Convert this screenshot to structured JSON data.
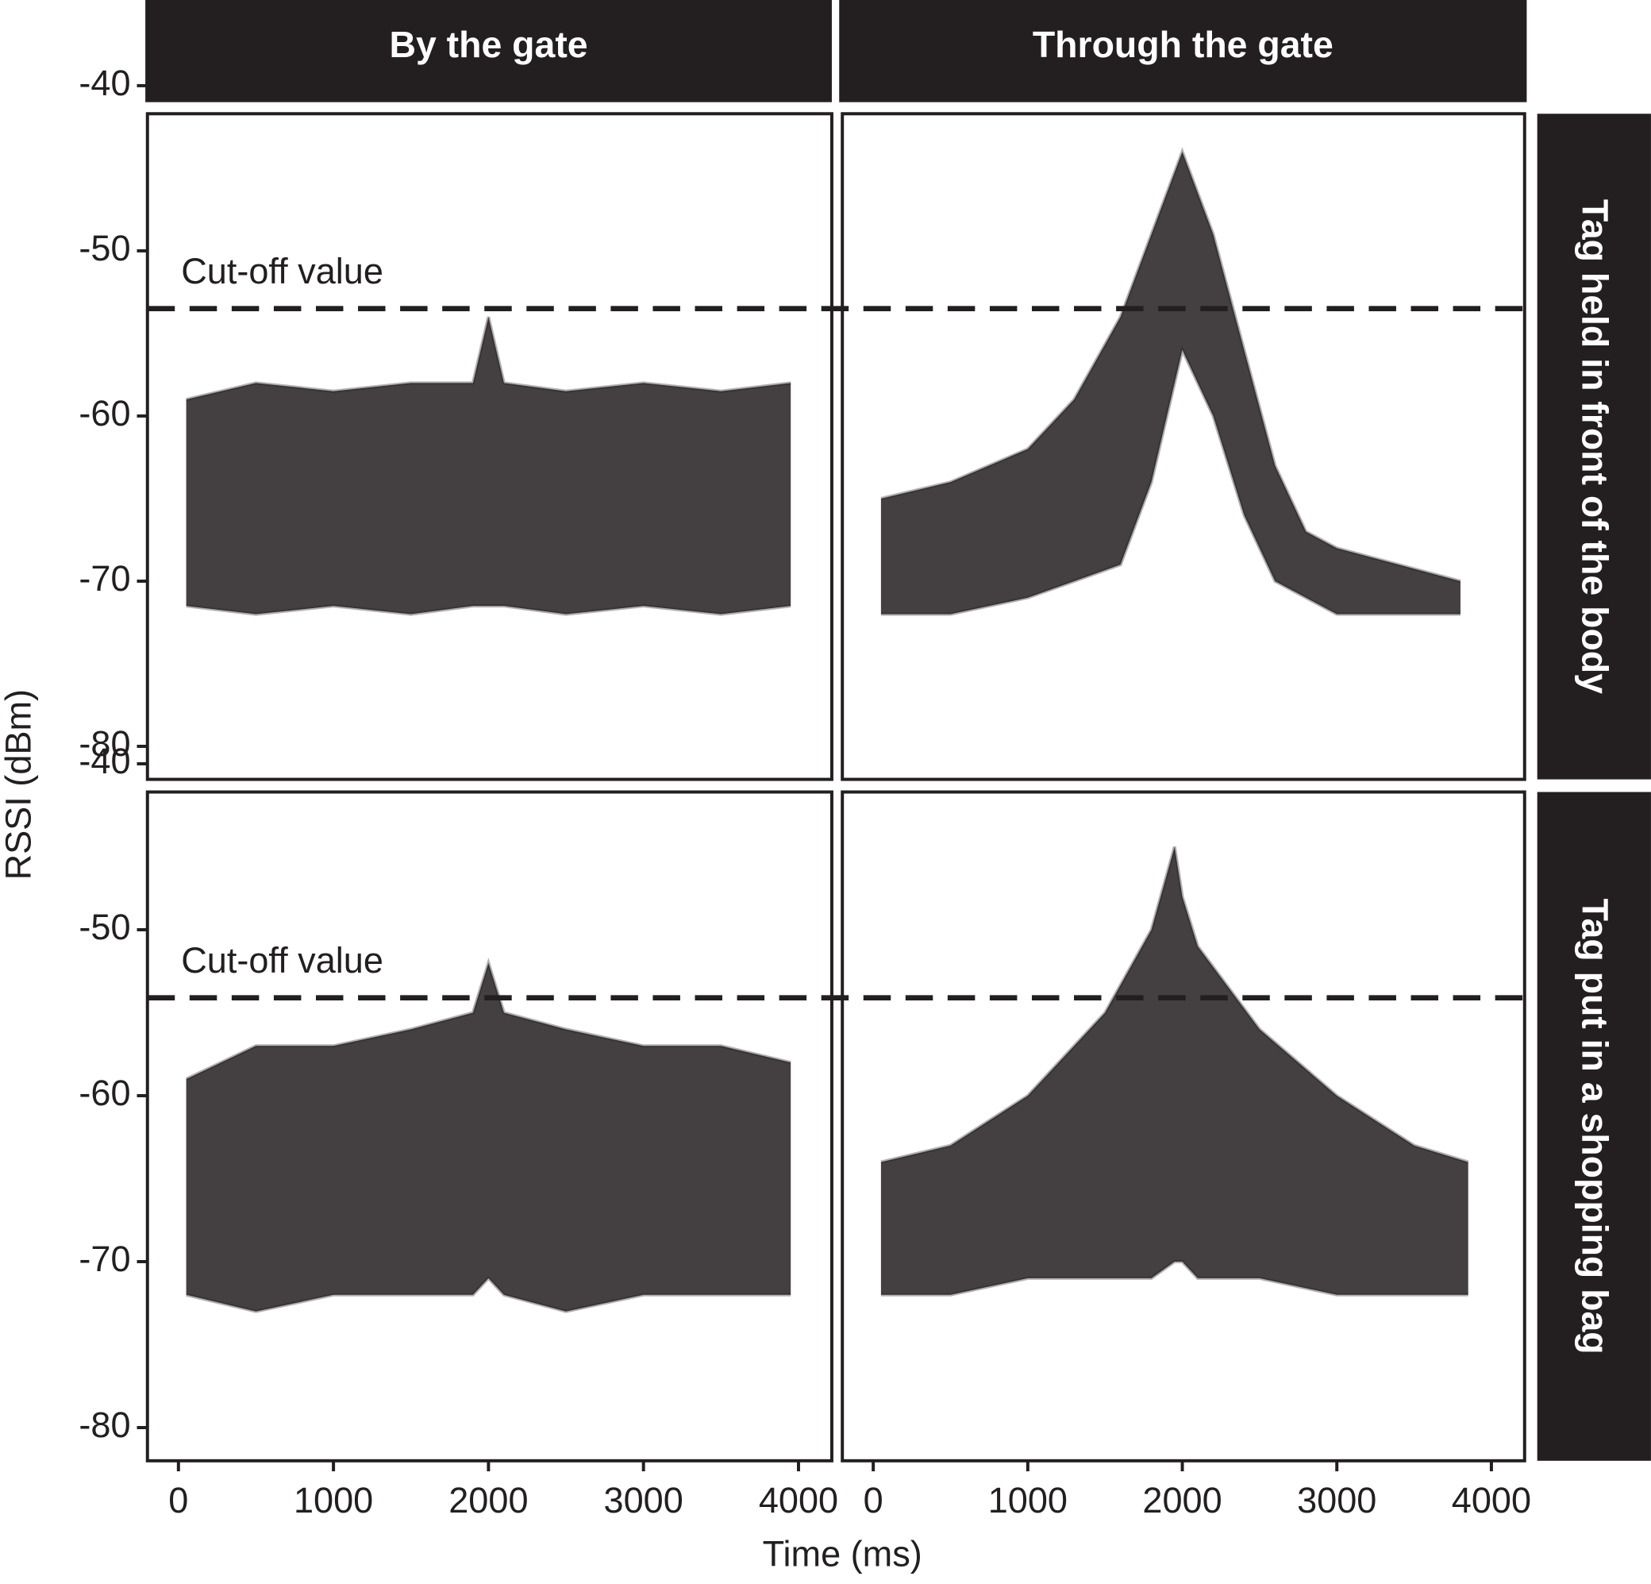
{
  "chart_data": {
    "type": "line",
    "xlabel": "Time (ms)",
    "ylabel": "RSSI (dBm)",
    "columns": [
      "By the gate",
      "Through the gate"
    ],
    "rows": [
      "Tag held in front of the body",
      "Tag put in a shopping bag"
    ],
    "xlim": [
      -200,
      4215
    ],
    "ylim": [
      -82,
      -41.7
    ],
    "xticks": [
      0,
      1000,
      2000,
      3000,
      4000
    ],
    "yticks": [
      -80,
      -70,
      -60,
      -50,
      -40
    ],
    "annotation": "Cut-off value",
    "cutoffs": [
      -53.5,
      -54.1
    ],
    "panels": [
      {
        "series": [
          {
            "color": "#231f20",
            "x": [
              50,
              500,
              1000,
              1500,
              1900,
              2000,
              2100,
              2500,
              3000,
              3500,
              3950
            ],
            "values": [
              -59,
              -58,
              -58.5,
              -58,
              -58,
              -54,
              -58,
              -58.5,
              -58,
              -58.5,
              -58
            ]
          },
          {
            "color": "#231f20",
            "x": [
              50,
              500,
              1000,
              1500,
              1900,
              2000,
              2100,
              2500,
              3000,
              3500,
              3950
            ],
            "values": [
              -71.5,
              -72,
              -71.5,
              -72,
              -71.5,
              -71.5,
              -71.5,
              -72,
              -71.5,
              -72,
              -71.5
            ]
          }
        ]
      },
      {
        "series": [
          {
            "color": "#231f20",
            "x": [
              50,
              500,
              1000,
              1300,
              1600,
              1800,
              2000,
              2200,
              2400,
              2600,
              2800,
              3000,
              3400,
              3800
            ],
            "values": [
              -65,
              -64,
              -62,
              -59,
              -54,
              -49,
              -44,
              -49,
              -56,
              -63,
              -67,
              -68,
              -69,
              -70
            ]
          },
          {
            "color": "#231f20",
            "x": [
              50,
              500,
              1000,
              1300,
              1600,
              1800,
              2000,
              2200,
              2400,
              2600,
              2800,
              3000,
              3400,
              3800
            ],
            "values": [
              -72,
              -72,
              -71,
              -70,
              -69,
              -64,
              -56,
              -60,
              -66,
              -70,
              -71,
              -72,
              -72,
              -72
            ]
          }
        ]
      },
      {
        "series": [
          {
            "color": "#231f20",
            "x": [
              50,
              500,
              1000,
              1500,
              1900,
              2000,
              2100,
              2500,
              3000,
              3500,
              3950
            ],
            "values": [
              -59,
              -57,
              -57,
              -56,
              -55,
              -52,
              -55,
              -56,
              -57,
              -57,
              -58
            ]
          },
          {
            "color": "#231f20",
            "x": [
              50,
              500,
              1000,
              1500,
              1900,
              2000,
              2100,
              2500,
              3000,
              3500,
              3950
            ],
            "values": [
              -72,
              -73,
              -72,
              -72,
              -72,
              -71,
              -72,
              -73,
              -72,
              -72,
              -72
            ]
          }
        ]
      },
      {
        "series": [
          {
            "color": "#231f20",
            "x": [
              50,
              500,
              1000,
              1500,
              1800,
              1950,
              2000,
              2100,
              2500,
              3000,
              3500,
              3850
            ],
            "values": [
              -64,
              -63,
              -60,
              -55,
              -50,
              -45,
              -48,
              -51,
              -56,
              -60,
              -63,
              -64
            ]
          },
          {
            "color": "#231f20",
            "x": [
              50,
              500,
              1000,
              1500,
              1800,
              1950,
              2000,
              2100,
              2500,
              3000,
              3500,
              3850
            ],
            "values": [
              -72,
              -72,
              -71,
              -71,
              -71,
              -70,
              -70,
              -71,
              -71,
              -72,
              -72,
              -72
            ]
          }
        ]
      }
    ]
  }
}
